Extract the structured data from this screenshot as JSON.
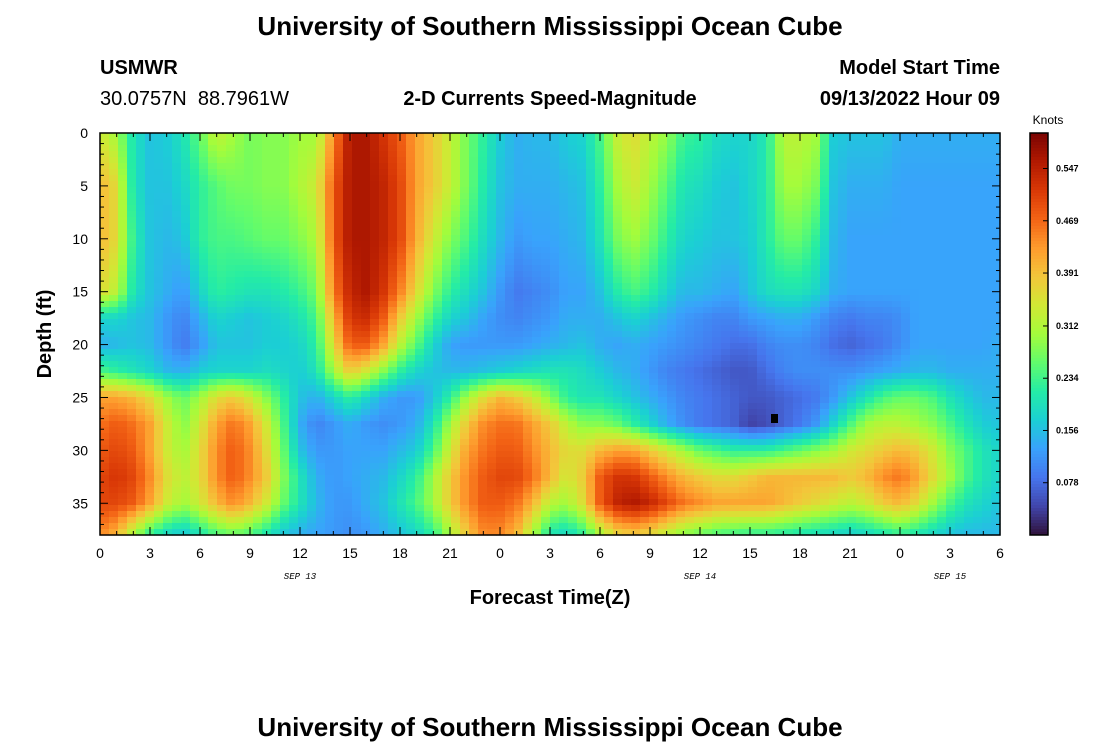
{
  "page": {
    "title": "University of Southern Mississippi Ocean Cube",
    "footer_title": "University of Southern Mississippi Ocean Cube",
    "station_id": "USMWR",
    "station_coords": "30.0757N  88.7961W",
    "plot_title": "2-D Currents Speed-Magnitude",
    "model_start_label": "Model Start Time",
    "model_start_value": "09/13/2022 Hour 09"
  },
  "chart_data": {
    "type": "heatmap",
    "title": "2-D Currents Speed-Magnitude",
    "xlabel": "Forecast Time(Z)",
    "ylabel": "Depth (ft)",
    "x_tick_labels": [
      "0",
      "3",
      "6",
      "9",
      "12",
      "15",
      "18",
      "21",
      "0",
      "3",
      "6",
      "9",
      "12",
      "15",
      "18",
      "21",
      "0",
      "3",
      "6"
    ],
    "y_tick_labels": [
      "0",
      "5",
      "10",
      "15",
      "20",
      "25",
      "30",
      "35"
    ],
    "y_ticks": [
      0,
      5,
      10,
      15,
      20,
      25,
      30,
      35
    ],
    "ylim": [
      0,
      38
    ],
    "x_range_hours": [
      0,
      54
    ],
    "x_tick_step_hours": 3,
    "date_labels": [
      {
        "text": "SEP 13",
        "hour": 12
      },
      {
        "text": "SEP 14",
        "hour": 36
      },
      {
        "text": "SEP 15",
        "hour": 51
      }
    ],
    "colorbar": {
      "unit": "Knots",
      "tick_values": [
        0.078,
        0.156,
        0.234,
        0.312,
        0.391,
        0.469,
        0.547
      ],
      "tick_labels": [
        "0.078",
        "0.156",
        "0.234",
        "0.312",
        "0.391",
        "0.469",
        "0.547"
      ],
      "min": 0.0,
      "max": 0.6,
      "colormap": [
        "#30123b",
        "#4145ab",
        "#4675ed",
        "#39a2fc",
        "#1bcfd4",
        "#24eca6",
        "#61fc6c",
        "#a4fc3b",
        "#d1e834",
        "#f3c63a",
        "#fe9b2d",
        "#f36315",
        "#d93806",
        "#b11901",
        "#7a0402"
      ]
    },
    "grid": {
      "hours": [
        0,
        1,
        2,
        3,
        4,
        5,
        6,
        7,
        8,
        9,
        10,
        11,
        12,
        13,
        14,
        15,
        16,
        17,
        18,
        19,
        20,
        21,
        22,
        23,
        24,
        25,
        26,
        27,
        28,
        29,
        30,
        31,
        32,
        33,
        34,
        35,
        36,
        37,
        38,
        39,
        40,
        41,
        42,
        43,
        44,
        45,
        46,
        47,
        48,
        49,
        50,
        51,
        52,
        53,
        54
      ],
      "depths_ft": [
        0,
        5,
        10,
        15,
        17.5,
        20,
        22.5,
        25,
        27.5,
        30,
        32.5,
        35,
        38
      ],
      "speed_knots": [
        [
          0.34,
          0.3,
          0.2,
          0.16,
          0.17,
          0.2,
          0.26,
          0.33,
          0.3,
          0.27,
          0.28,
          0.28,
          0.3,
          0.3,
          0.44,
          0.56,
          0.56,
          0.52,
          0.48,
          0.42,
          0.38,
          0.33,
          0.27,
          0.22,
          0.17,
          0.14,
          0.15,
          0.15,
          0.17,
          0.18,
          0.24,
          0.33,
          0.36,
          0.32,
          0.29,
          0.23,
          0.22,
          0.19,
          0.18,
          0.18,
          0.21,
          0.32,
          0.32,
          0.3,
          0.17,
          0.16,
          0.16,
          0.16,
          0.14,
          0.14,
          0.14,
          0.14,
          0.14,
          0.14,
          0.14
        ],
        [
          0.4,
          0.36,
          0.2,
          0.16,
          0.16,
          0.18,
          0.22,
          0.25,
          0.27,
          0.27,
          0.28,
          0.28,
          0.31,
          0.34,
          0.48,
          0.56,
          0.56,
          0.54,
          0.5,
          0.42,
          0.38,
          0.33,
          0.27,
          0.21,
          0.16,
          0.14,
          0.14,
          0.14,
          0.15,
          0.16,
          0.22,
          0.3,
          0.34,
          0.3,
          0.25,
          0.2,
          0.19,
          0.17,
          0.16,
          0.18,
          0.21,
          0.3,
          0.3,
          0.27,
          0.16,
          0.14,
          0.14,
          0.14,
          0.13,
          0.13,
          0.13,
          0.13,
          0.13,
          0.13,
          0.13
        ],
        [
          0.4,
          0.36,
          0.22,
          0.16,
          0.15,
          0.16,
          0.22,
          0.24,
          0.24,
          0.25,
          0.26,
          0.26,
          0.28,
          0.31,
          0.48,
          0.56,
          0.56,
          0.54,
          0.5,
          0.41,
          0.34,
          0.28,
          0.24,
          0.19,
          0.15,
          0.12,
          0.13,
          0.13,
          0.14,
          0.15,
          0.2,
          0.27,
          0.3,
          0.27,
          0.22,
          0.18,
          0.17,
          0.16,
          0.16,
          0.17,
          0.21,
          0.26,
          0.26,
          0.22,
          0.15,
          0.13,
          0.13,
          0.13,
          0.13,
          0.13,
          0.13,
          0.13,
          0.13,
          0.13,
          0.13
        ],
        [
          0.36,
          0.32,
          0.2,
          0.16,
          0.14,
          0.12,
          0.18,
          0.22,
          0.21,
          0.2,
          0.2,
          0.21,
          0.23,
          0.27,
          0.45,
          0.54,
          0.56,
          0.52,
          0.45,
          0.36,
          0.28,
          0.22,
          0.19,
          0.16,
          0.12,
          0.09,
          0.1,
          0.11,
          0.13,
          0.13,
          0.16,
          0.21,
          0.24,
          0.22,
          0.18,
          0.15,
          0.15,
          0.14,
          0.13,
          0.16,
          0.19,
          0.2,
          0.2,
          0.18,
          0.14,
          0.13,
          0.13,
          0.13,
          0.13,
          0.13,
          0.13,
          0.13,
          0.13,
          0.13,
          0.13
        ],
        [
          0.18,
          0.18,
          0.16,
          0.15,
          0.12,
          0.1,
          0.14,
          0.18,
          0.17,
          0.16,
          0.17,
          0.18,
          0.2,
          0.24,
          0.4,
          0.52,
          0.53,
          0.48,
          0.38,
          0.3,
          0.23,
          0.18,
          0.16,
          0.13,
          0.11,
          0.1,
          0.11,
          0.12,
          0.14,
          0.14,
          0.14,
          0.16,
          0.18,
          0.16,
          0.14,
          0.12,
          0.11,
          0.1,
          0.1,
          0.12,
          0.13,
          0.14,
          0.14,
          0.12,
          0.1,
          0.09,
          0.1,
          0.1,
          0.11,
          0.13,
          0.13,
          0.13,
          0.13,
          0.13,
          0.13
        ],
        [
          0.14,
          0.15,
          0.16,
          0.15,
          0.12,
          0.09,
          0.12,
          0.16,
          0.16,
          0.16,
          0.17,
          0.17,
          0.18,
          0.22,
          0.36,
          0.48,
          0.48,
          0.42,
          0.32,
          0.25,
          0.18,
          0.13,
          0.12,
          0.12,
          0.12,
          0.12,
          0.13,
          0.14,
          0.15,
          0.16,
          0.14,
          0.13,
          0.14,
          0.13,
          0.12,
          0.11,
          0.1,
          0.09,
          0.08,
          0.08,
          0.1,
          0.11,
          0.11,
          0.1,
          0.08,
          0.07,
          0.08,
          0.09,
          0.11,
          0.13,
          0.13,
          0.13,
          0.13,
          0.13,
          0.14
        ],
        [
          0.24,
          0.22,
          0.2,
          0.18,
          0.15,
          0.14,
          0.17,
          0.18,
          0.18,
          0.18,
          0.19,
          0.18,
          0.17,
          0.2,
          0.3,
          0.38,
          0.34,
          0.28,
          0.22,
          0.18,
          0.16,
          0.15,
          0.15,
          0.16,
          0.17,
          0.18,
          0.19,
          0.2,
          0.2,
          0.19,
          0.17,
          0.15,
          0.14,
          0.12,
          0.1,
          0.09,
          0.08,
          0.07,
          0.06,
          0.06,
          0.08,
          0.1,
          0.11,
          0.11,
          0.11,
          0.11,
          0.12,
          0.13,
          0.14,
          0.15,
          0.15,
          0.14,
          0.14,
          0.14,
          0.14
        ],
        [
          0.42,
          0.42,
          0.4,
          0.36,
          0.3,
          0.26,
          0.3,
          0.36,
          0.38,
          0.34,
          0.28,
          0.22,
          0.16,
          0.14,
          0.18,
          0.22,
          0.18,
          0.14,
          0.12,
          0.12,
          0.16,
          0.22,
          0.3,
          0.36,
          0.4,
          0.38,
          0.34,
          0.28,
          0.22,
          0.2,
          0.2,
          0.18,
          0.16,
          0.14,
          0.12,
          0.1,
          0.09,
          0.08,
          0.07,
          0.06,
          0.06,
          0.07,
          0.08,
          0.09,
          0.12,
          0.16,
          0.2,
          0.24,
          0.26,
          0.26,
          0.24,
          0.2,
          0.17,
          0.15,
          0.15
        ],
        [
          0.46,
          0.48,
          0.46,
          0.42,
          0.34,
          0.28,
          0.34,
          0.42,
          0.46,
          0.42,
          0.34,
          0.24,
          0.14,
          0.1,
          0.12,
          0.14,
          0.12,
          0.11,
          0.12,
          0.14,
          0.2,
          0.3,
          0.38,
          0.44,
          0.46,
          0.46,
          0.42,
          0.38,
          0.32,
          0.28,
          0.28,
          0.26,
          0.22,
          0.18,
          0.14,
          0.11,
          0.09,
          0.08,
          0.07,
          0.04,
          0.05,
          0.07,
          0.09,
          0.12,
          0.18,
          0.24,
          0.3,
          0.32,
          0.32,
          0.3,
          0.28,
          0.24,
          0.2,
          0.17,
          0.16
        ],
        [
          0.48,
          0.5,
          0.48,
          0.42,
          0.34,
          0.3,
          0.36,
          0.44,
          0.48,
          0.44,
          0.36,
          0.26,
          0.16,
          0.12,
          0.12,
          0.13,
          0.13,
          0.13,
          0.15,
          0.17,
          0.24,
          0.34,
          0.42,
          0.46,
          0.48,
          0.48,
          0.44,
          0.4,
          0.36,
          0.36,
          0.4,
          0.42,
          0.42,
          0.38,
          0.34,
          0.3,
          0.26,
          0.24,
          0.22,
          0.22,
          0.22,
          0.24,
          0.26,
          0.28,
          0.3,
          0.34,
          0.36,
          0.38,
          0.4,
          0.38,
          0.34,
          0.28,
          0.24,
          0.2,
          0.18
        ],
        [
          0.5,
          0.52,
          0.5,
          0.44,
          0.36,
          0.32,
          0.36,
          0.44,
          0.48,
          0.44,
          0.38,
          0.28,
          0.2,
          0.14,
          0.12,
          0.13,
          0.14,
          0.15,
          0.18,
          0.22,
          0.3,
          0.38,
          0.44,
          0.48,
          0.5,
          0.5,
          0.46,
          0.4,
          0.34,
          0.38,
          0.48,
          0.52,
          0.52,
          0.48,
          0.44,
          0.4,
          0.38,
          0.36,
          0.36,
          0.38,
          0.4,
          0.4,
          0.4,
          0.4,
          0.4,
          0.38,
          0.4,
          0.44,
          0.46,
          0.42,
          0.36,
          0.3,
          0.24,
          0.2,
          0.18
        ],
        [
          0.5,
          0.5,
          0.48,
          0.42,
          0.34,
          0.3,
          0.34,
          0.4,
          0.44,
          0.4,
          0.34,
          0.26,
          0.2,
          0.15,
          0.12,
          0.12,
          0.14,
          0.16,
          0.2,
          0.24,
          0.3,
          0.38,
          0.44,
          0.48,
          0.48,
          0.46,
          0.4,
          0.32,
          0.3,
          0.36,
          0.48,
          0.54,
          0.56,
          0.54,
          0.5,
          0.46,
          0.44,
          0.42,
          0.42,
          0.42,
          0.42,
          0.4,
          0.38,
          0.36,
          0.34,
          0.32,
          0.34,
          0.38,
          0.4,
          0.36,
          0.3,
          0.24,
          0.2,
          0.18,
          0.16
        ],
        [
          0.44,
          0.4,
          0.3,
          0.22,
          0.18,
          0.16,
          0.2,
          0.24,
          0.26,
          0.24,
          0.2,
          0.16,
          0.14,
          0.13,
          0.12,
          0.11,
          0.12,
          0.14,
          0.16,
          0.18,
          0.22,
          0.3,
          0.38,
          0.44,
          0.44,
          0.4,
          0.3,
          0.2,
          0.18,
          0.22,
          0.3,
          0.36,
          0.38,
          0.36,
          0.32,
          0.28,
          0.26,
          0.24,
          0.23,
          0.22,
          0.22,
          0.21,
          0.2,
          0.19,
          0.18,
          0.17,
          0.18,
          0.2,
          0.22,
          0.2,
          0.18,
          0.16,
          0.15,
          0.15,
          0.15
        ]
      ]
    }
  }
}
